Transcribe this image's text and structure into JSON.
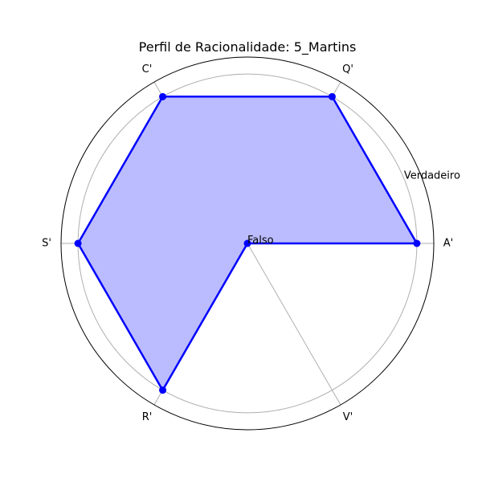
{
  "chart_data": {
    "type": "radar",
    "title": "Perfil de Racionalidade: 5_Martins",
    "categories": [
      "A'",
      "Q'",
      "C'",
      "S'",
      "R'",
      "V'"
    ],
    "values": [
      1,
      1,
      1,
      1,
      1,
      0
    ],
    "radial_ticks": [
      {
        "value": 0,
        "label": "Falso"
      },
      {
        "value": 1,
        "label": "Verdadeiro"
      }
    ],
    "rlim": [
      0,
      1.1
    ],
    "grid": true,
    "line_color": "#0000ff",
    "fill_color": "#bbbbff",
    "grid_color": "#b0b0b0"
  }
}
